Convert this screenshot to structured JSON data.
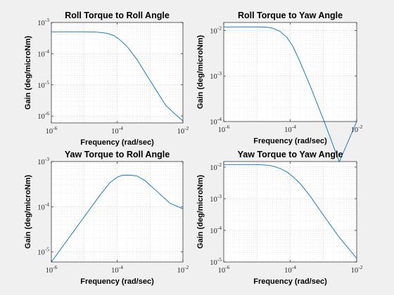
{
  "figure": {
    "background": "#f0f0f0",
    "axes_background": "#ffffff",
    "line_color": "#0072bd",
    "grid_color": "#b8b8b8"
  },
  "chart_data": [
    {
      "type": "line",
      "title": "Roll Torque to Roll Angle",
      "xlabel": "Frequency (rad/sec)",
      "ylabel": "Gain (deg/microNm)",
      "xscale": "log",
      "yscale": "log",
      "xlim": [
        1e-06,
        0.01
      ],
      "ylim": [
        6e-07,
        0.001
      ],
      "xticks": [
        -6,
        -4,
        -2
      ],
      "yticks": [
        -6,
        -5,
        -4,
        -3
      ],
      "grid": true,
      "series": [
        {
          "x": [
            1e-06,
            1e-05,
            2e-05,
            3e-05,
            5e-05,
            8e-05,
            0.00012,
            0.0002,
            0.0004,
            0.0008,
            0.0015,
            0.003,
            0.006,
            0.01
          ],
          "y": [
            0.0005,
            0.0005,
            0.000495,
            0.00048,
            0.00045,
            0.00038,
            0.00028,
            0.00017,
            6.5e-05,
            2e-05,
            7e-06,
            2.2e-06,
            1.1e-06,
            7e-07
          ]
        }
      ]
    },
    {
      "type": "line",
      "title": "Roll Torque to Yaw Angle",
      "xlabel": "Frequency (rad/sec)",
      "ylabel": "Gain (deg/microNm)",
      "xscale": "log",
      "yscale": "log",
      "xlim": [
        1e-06,
        0.01
      ],
      "ylim": [
        0.0001,
        0.015
      ],
      "xticks": [
        -6,
        -4,
        -2
      ],
      "yticks": [
        -4,
        -3,
        -2
      ],
      "grid": true,
      "series": [
        {
          "x": [
            1e-06,
            1e-05,
            2e-05,
            3e-05,
            5e-05,
            8e-05,
            0.00012,
            0.0002,
            0.0004,
            0.001,
            0.003,
            0.01
          ],
          "y": [
            0.012,
            0.012,
            0.0118,
            0.0112,
            0.0095,
            0.007,
            0.0045,
            0.002,
            0.0006,
            0.00011,
            1.3e-05,
            0.0001
          ]
        }
      ]
    },
    {
      "type": "line",
      "title": "Yaw Torque to Roll Angle",
      "xlabel": "Frequency (rad/sec)",
      "ylabel": "Gain (deg/microNm)",
      "xscale": "log",
      "yscale": "log",
      "xlim": [
        1e-06,
        0.01
      ],
      "ylim": [
        6e-06,
        0.001
      ],
      "xticks": [
        -6,
        -4,
        -2
      ],
      "yticks": [
        -5,
        -4,
        -3
      ],
      "grid": true,
      "series": [
        {
          "x": [
            1e-06,
            3e-06,
            1e-05,
            3e-05,
            6e-05,
            0.0001,
            0.00015,
            0.00025,
            0.0004,
            0.0007,
            0.0015,
            0.004,
            0.01
          ],
          "y": [
            6e-06,
            1.8e-05,
            6e-05,
            0.00018,
            0.00034,
            0.00045,
            0.0005,
            0.0005,
            0.00048,
            0.00038,
            0.00023,
            0.00012,
            9e-05
          ]
        }
      ]
    },
    {
      "type": "line",
      "title": "Yaw Torque to Yaw Angle",
      "xlabel": "Frequency (rad/sec)",
      "ylabel": "Gain (deg/microNm)",
      "xscale": "log",
      "yscale": "log",
      "xlim": [
        1e-06,
        0.01
      ],
      "ylim": [
        1e-05,
        0.015
      ],
      "xticks": [
        -6,
        -4,
        -2
      ],
      "yticks": [
        -5,
        -4,
        -3,
        -2
      ],
      "grid": true,
      "series": [
        {
          "x": [
            1e-06,
            1e-05,
            2e-05,
            3e-05,
            5e-05,
            8e-05,
            0.00012,
            0.0002,
            0.0004,
            0.001,
            0.003,
            0.01
          ],
          "y": [
            0.012,
            0.012,
            0.0115,
            0.0108,
            0.009,
            0.007,
            0.005,
            0.003,
            0.0012,
            0.0003,
            6e-05,
            1.3e-05
          ]
        }
      ]
    }
  ]
}
